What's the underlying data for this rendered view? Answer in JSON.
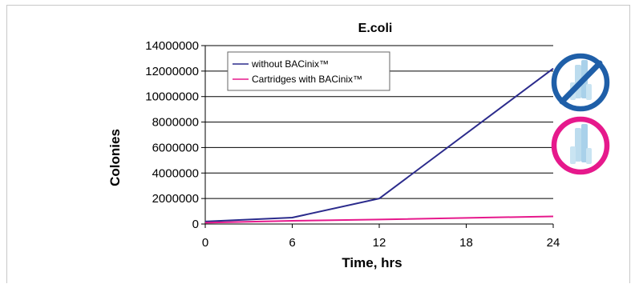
{
  "chart_data": {
    "type": "line",
    "title": "E.coli",
    "xlabel": "Time, hrs",
    "ylabel": "Colonies",
    "x": [
      0,
      6,
      12,
      18,
      24
    ],
    "ylim": [
      0,
      14000000
    ],
    "xlim": [
      0,
      24
    ],
    "yticks": [
      0,
      2000000,
      4000000,
      6000000,
      8000000,
      10000000,
      12000000,
      14000000
    ],
    "ytick_labels": [
      "0",
      "2000000",
      "4000000",
      "6000000",
      "8000000",
      "10000000",
      "12000000",
      "14000000"
    ],
    "xtick_labels": [
      "0",
      "6",
      "12",
      "18",
      "24"
    ],
    "grid": "horizontal",
    "legend_position": "top-left",
    "series": [
      {
        "name": "without BACinix™",
        "color": "#2b2b8c",
        "x": [
          0,
          6,
          12,
          24
        ],
        "values": [
          200000,
          500000,
          2000000,
          12200000
        ]
      },
      {
        "name": "Cartridges with BACinix™",
        "color": "#e6198c",
        "x": [
          0,
          6,
          12,
          24
        ],
        "values": [
          100000,
          250000,
          350000,
          600000
        ]
      }
    ]
  },
  "side_icons": [
    {
      "name": "prohibited-cartridge-icon",
      "ring_color": "#1f5fa8"
    },
    {
      "name": "bacinix-cartridge-icon",
      "ring_color": "#e6198c"
    }
  ]
}
